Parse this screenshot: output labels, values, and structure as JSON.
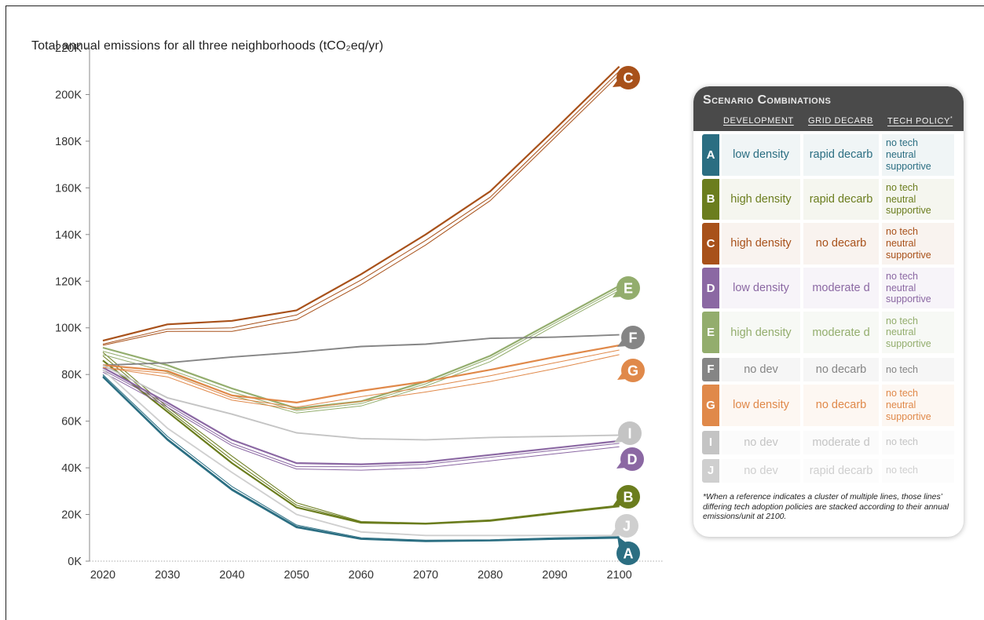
{
  "chart_data": {
    "type": "line",
    "title": "Total annual emissions for all three neighborhoods (tCO₂eq/yr)",
    "x": [
      2020,
      2030,
      2040,
      2050,
      2060,
      2070,
      2080,
      2090,
      2100
    ],
    "xlabel": "",
    "ylabel": "",
    "ylim": [
      0,
      220000
    ],
    "y_ticks": [
      "0K",
      "20K",
      "40K",
      "60K",
      "80K",
      "100K",
      "120K",
      "140K",
      "160K",
      "180K",
      "200K",
      "220K"
    ],
    "x_ticks": [
      "2020",
      "2030",
      "2040",
      "2050",
      "2060",
      "2070",
      "2080",
      "2090",
      "2100"
    ],
    "grid": false,
    "series": [
      {
        "name": "A",
        "color": "#2b6e82",
        "lines": [
          [
            79000,
            52000,
            30500,
            14500,
            9500,
            8500,
            8800,
            9500,
            10000
          ],
          [
            79500,
            52500,
            31000,
            15000,
            9700,
            8700,
            9000,
            9700,
            10300
          ],
          [
            80000,
            53500,
            32000,
            15500,
            10000,
            9000,
            9200,
            10000,
            10500
          ]
        ]
      },
      {
        "name": "B",
        "color": "#6b7d1e",
        "lines": [
          [
            86000,
            64000,
            42000,
            23000,
            16500,
            16000,
            17300,
            20500,
            23500
          ],
          [
            88000,
            65000,
            43500,
            24000,
            16800,
            16200,
            17500,
            20700,
            23800
          ],
          [
            89500,
            66000,
            45000,
            25000,
            17000,
            16300,
            17700,
            20900,
            24000
          ]
        ]
      },
      {
        "name": "C",
        "color": "#a8511a",
        "lines": [
          [
            94500,
            101500,
            103000,
            107500,
            123000,
            140000,
            158500,
            185000,
            212000
          ],
          [
            93000,
            99500,
            100000,
            105500,
            120500,
            137500,
            156000,
            183000,
            210000
          ],
          [
            92500,
            98500,
            98500,
            103500,
            118500,
            135500,
            154500,
            181500,
            208500
          ]
        ]
      },
      {
        "name": "D",
        "color": "#8b68a3",
        "lines": [
          [
            83000,
            68000,
            52000,
            42000,
            41500,
            42500,
            45500,
            48500,
            51500
          ],
          [
            82000,
            67000,
            50500,
            40500,
            40500,
            41500,
            44500,
            47500,
            50500
          ],
          [
            81000,
            66000,
            49500,
            39500,
            39000,
            40000,
            43000,
            46000,
            49000
          ]
        ]
      },
      {
        "name": "E",
        "color": "#93ad6d",
        "lines": [
          [
            91500,
            84000,
            74000,
            65500,
            68500,
            77000,
            88000,
            103000,
            118000
          ],
          [
            90000,
            82500,
            72500,
            64500,
            67500,
            76000,
            87000,
            102000,
            117000
          ],
          [
            88500,
            81000,
            71000,
            63500,
            66500,
            75000,
            85500,
            101000,
            116000
          ]
        ]
      },
      {
        "name": "F",
        "color": "#858585",
        "lines": [
          [
            84000,
            85000,
            87500,
            89500,
            92000,
            93000,
            95500,
            96000,
            97000
          ]
        ]
      },
      {
        "name": "G",
        "color": "#e0894a",
        "lines": [
          [
            84000,
            81500,
            71000,
            68000,
            73000,
            77000,
            82000,
            87500,
            92500
          ],
          [
            83000,
            80500,
            70000,
            66000,
            70500,
            74500,
            79500,
            85000,
            90500
          ],
          [
            83000,
            79000,
            69000,
            65000,
            68500,
            72500,
            77000,
            82500,
            88500
          ]
        ]
      },
      {
        "name": "I",
        "color": "#c4c4c4",
        "lines": [
          [
            84000,
            70000,
            63000,
            55000,
            52500,
            52000,
            53000,
            53500,
            54000
          ]
        ]
      },
      {
        "name": "J",
        "color": "#cfcfcf",
        "lines": [
          [
            82000,
            57000,
            38000,
            20000,
            12500,
            11000,
            11000,
            11000,
            11000
          ]
        ]
      }
    ]
  },
  "legend": {
    "title": "Scenario Combinations",
    "col_development": "DEVELOPMENT",
    "col_grid": "GRID DECARB",
    "col_tech": "TECH POLICY",
    "col_tech_mark": "*",
    "rows": [
      {
        "letter": "A",
        "dev": "low density",
        "grid": "rapid decarb",
        "tech": "no tech\nneutral\nsupportive"
      },
      {
        "letter": "B",
        "dev": "high density",
        "grid": "rapid decarb",
        "tech": "no tech\nneutral\nsupportive"
      },
      {
        "letter": "C",
        "dev": "high density",
        "grid": "no decarb",
        "tech": "no tech\nneutral\nsupportive"
      },
      {
        "letter": "D",
        "dev": "low density",
        "grid": "moderate d",
        "tech": "no tech\nneutral\nsupportive"
      },
      {
        "letter": "E",
        "dev": "high density",
        "grid": "moderate d",
        "tech": "no tech\nneutral\nsupportive"
      },
      {
        "letter": "F",
        "dev": "no dev",
        "grid": "no decarb",
        "tech": "no tech"
      },
      {
        "letter": "G",
        "dev": "low density",
        "grid": "no decarb",
        "tech": "no tech\nneutral\nsupportive"
      },
      {
        "letter": "I",
        "dev": "no dev",
        "grid": "moderate d",
        "tech": "no tech"
      },
      {
        "letter": "J",
        "dev": "no dev",
        "grid": "rapid decarb",
        "tech": "no tech"
      }
    ],
    "footnote": "*When a reference indicates a cluster of multiple lines, those lines’ differing tech adoption policies are stacked according to their annual emissions/unit at 2100."
  }
}
